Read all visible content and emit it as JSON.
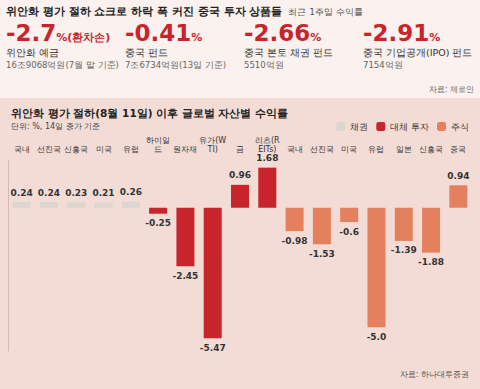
{
  "header": {
    "title": "위안화 평가 절하 쇼크로 하락 폭 커진 중국 투자 상품들",
    "subtitle": "최근 1주일 수익률",
    "items": [
      {
        "value": -2.7,
        "unit": "%(환차손)",
        "label": "위안화 예금",
        "note": "16조9068억원(7월 말 기준)"
      },
      {
        "value": -0.41,
        "unit": "%",
        "label": "중국 펀드",
        "note": "7조6734억원(13일 기준)"
      },
      {
        "value": -2.66,
        "unit": "%",
        "label": "중국 본토 채권 펀드",
        "note": "5510억원"
      },
      {
        "value": -2.91,
        "unit": "%",
        "label": "중국 기업공개(IPO) 펀드",
        "note": "7154억원"
      }
    ],
    "source": "자료: 제로인"
  },
  "chart_data": {
    "type": "bar",
    "title": "위안화 평가 절하(8월 11일) 이후 글로벌 자산별 수익률",
    "subtitle": "단위: %, 14일 종가 기준",
    "source": "자료: 하나대투증권",
    "categories": [
      "국내",
      "선진국",
      "신흥국",
      "미국",
      "유럽",
      "하이일드",
      "원자재",
      "유가(WTI)",
      "금",
      "리츠(REITs)",
      "국내",
      "선진국",
      "미국",
      "유럽",
      "일본",
      "신흥국",
      "중국"
    ],
    "series": [
      {
        "name": "채권",
        "color": "#ddd6d0",
        "values": [
          0.24,
          0.24,
          0.23,
          0.21,
          0.26,
          null,
          null,
          null,
          null,
          null,
          null,
          null,
          null,
          null,
          null,
          null,
          null
        ]
      },
      {
        "name": "대체 투자",
        "color": "#c8242b",
        "values": [
          null,
          null,
          null,
          null,
          null,
          -0.25,
          -2.45,
          -5.47,
          0.96,
          1.68,
          null,
          null,
          null,
          null,
          null,
          null,
          null
        ]
      },
      {
        "name": "주식",
        "color": "#e5805f",
        "values": [
          null,
          null,
          null,
          null,
          null,
          null,
          null,
          null,
          null,
          null,
          -0.98,
          -1.53,
          -0.6,
          -5.0,
          -1.39,
          -1.88,
          0.94
        ],
        "value_labels": [
          null,
          null,
          null,
          null,
          null,
          null,
          null,
          null,
          null,
          null,
          "-0.98",
          "-1.53",
          "-0.6",
          "-5.0",
          "-1.39",
          "-1.88",
          "0.94"
        ]
      }
    ],
    "ylim": [
      -6,
      2
    ],
    "tick_labels": "x",
    "grid": false,
    "legend": "top right",
    "data_labels": true
  }
}
